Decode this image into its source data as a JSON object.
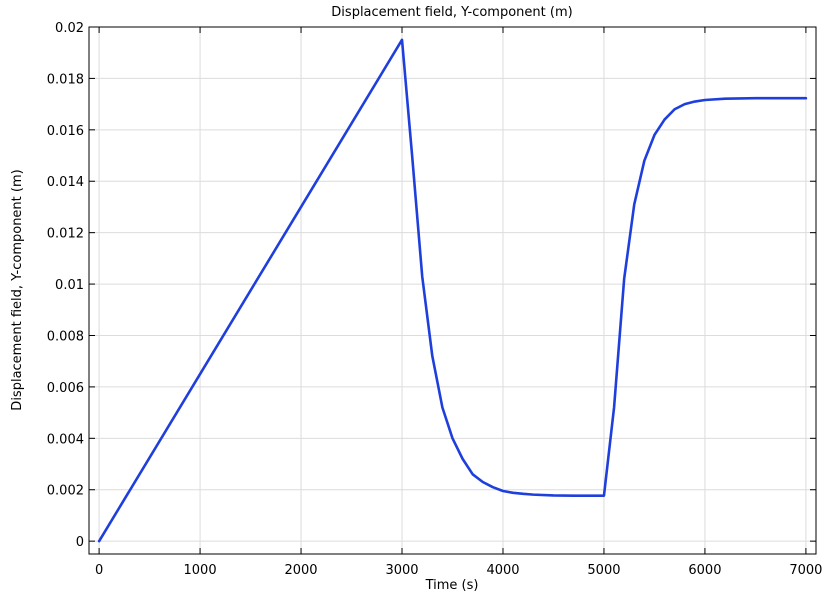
{
  "chart_data": {
    "type": "line",
    "title": "Displacement field, Y-component (m)",
    "xlabel": "Time (s)",
    "ylabel": "Displacement field, Y-component (m)",
    "xlim": [
      -100,
      7100
    ],
    "ylim": [
      -0.0005,
      0.02
    ],
    "xticks": [
      0,
      1000,
      2000,
      3000,
      4000,
      5000,
      6000,
      7000
    ],
    "xtick_labels": [
      "0",
      "1000",
      "2000",
      "3000",
      "4000",
      "5000",
      "6000",
      "7000"
    ],
    "yticks": [
      0,
      0.002,
      0.004,
      0.006,
      0.008,
      0.01,
      0.012,
      0.014,
      0.016,
      0.018,
      0.02
    ],
    "ytick_labels": [
      "0",
      "0.002",
      "0.004",
      "0.006",
      "0.008",
      "0.01",
      "0.012",
      "0.014",
      "0.016",
      "0.018",
      "0.02"
    ],
    "grid": true,
    "series": [
      {
        "color": "#1f3fdd",
        "x": [
          0,
          1000,
          2000,
          3000,
          3100,
          3200,
          3300,
          3400,
          3500,
          3600,
          3700,
          3800,
          3900,
          4000,
          4100,
          4200,
          4300,
          4500,
          4700,
          5000,
          5100,
          5200,
          5300,
          5400,
          5500,
          5600,
          5700,
          5800,
          5900,
          6000,
          6200,
          6500,
          7000
        ],
        "y": [
          0,
          0.0065,
          0.013,
          0.0195,
          0.015,
          0.0103,
          0.0072,
          0.0052,
          0.004,
          0.0032,
          0.0026,
          0.0023,
          0.0021,
          0.00195,
          0.00188,
          0.00184,
          0.00181,
          0.00178,
          0.00177,
          0.00177,
          0.0052,
          0.0102,
          0.0131,
          0.0148,
          0.0158,
          0.0164,
          0.0168,
          0.017,
          0.0171,
          0.01716,
          0.01721,
          0.01723,
          0.01723
        ]
      }
    ]
  }
}
